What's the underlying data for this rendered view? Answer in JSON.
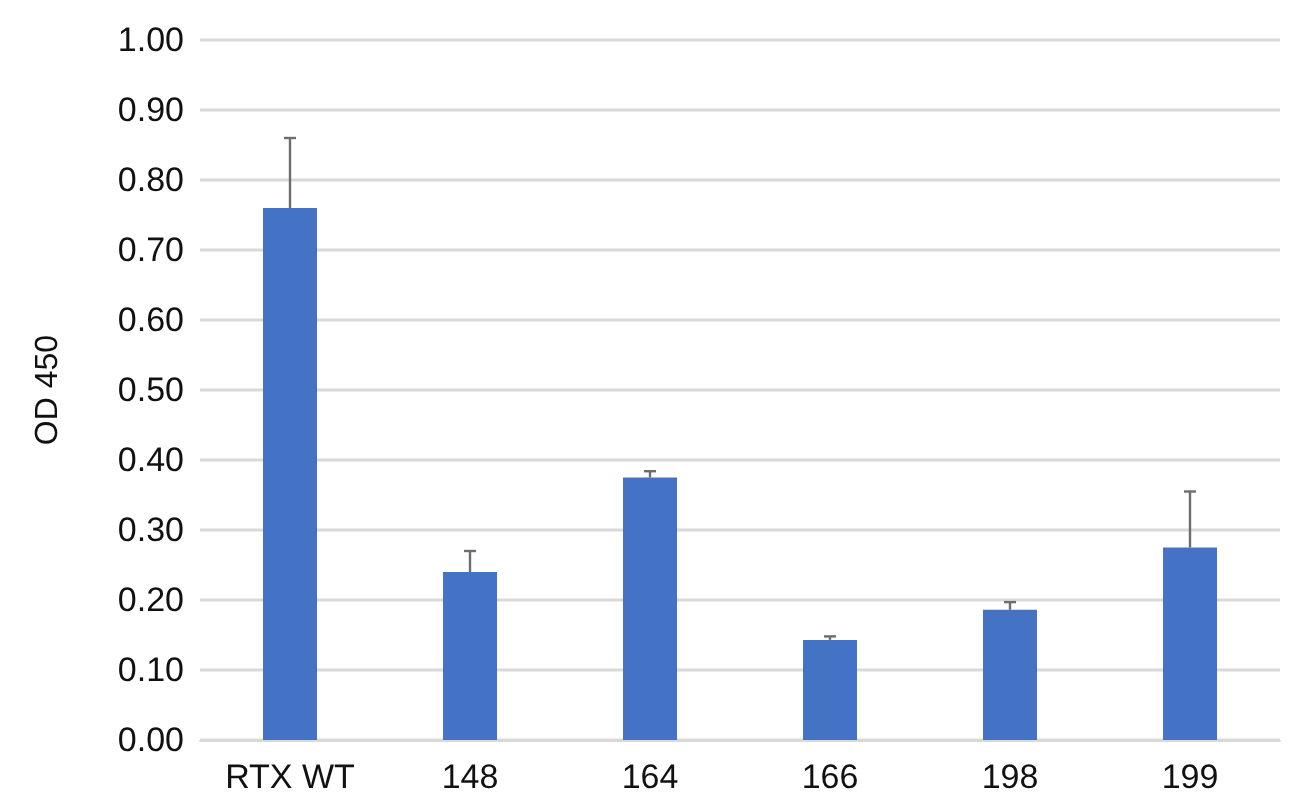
{
  "chart_data": {
    "type": "bar",
    "ylabel": "OD 450",
    "categories": [
      "RTX WT",
      "148",
      "164",
      "166",
      "198",
      "199"
    ],
    "values": [
      0.76,
      0.24,
      0.375,
      0.143,
      0.186,
      0.275
    ],
    "errors": [
      [
        0.76,
        0.86
      ],
      [
        0.24,
        0.27
      ],
      [
        0.375,
        0.384
      ],
      [
        0.143,
        0.148
      ],
      [
        0.186,
        0.197
      ],
      [
        0.275,
        0.355
      ]
    ],
    "color": "#4472c4",
    "ylim": [
      0,
      1
    ],
    "yticks": [
      {
        "value": 0,
        "label": "0.00"
      },
      {
        "value": 0.1,
        "label": "0.10"
      },
      {
        "value": 0.2,
        "label": "0.20"
      },
      {
        "value": 0.3,
        "label": "0.30"
      },
      {
        "value": 0.4,
        "label": "0.40"
      },
      {
        "value": 0.5,
        "label": "0.50"
      },
      {
        "value": 0.6,
        "label": "0.60"
      },
      {
        "value": 0.7,
        "label": "0.70"
      },
      {
        "value": 0.8,
        "label": "0.80"
      },
      {
        "value": 0.9,
        "label": "0.90"
      },
      {
        "value": 1,
        "label": "1.00"
      }
    ],
    "grid": "y"
  }
}
